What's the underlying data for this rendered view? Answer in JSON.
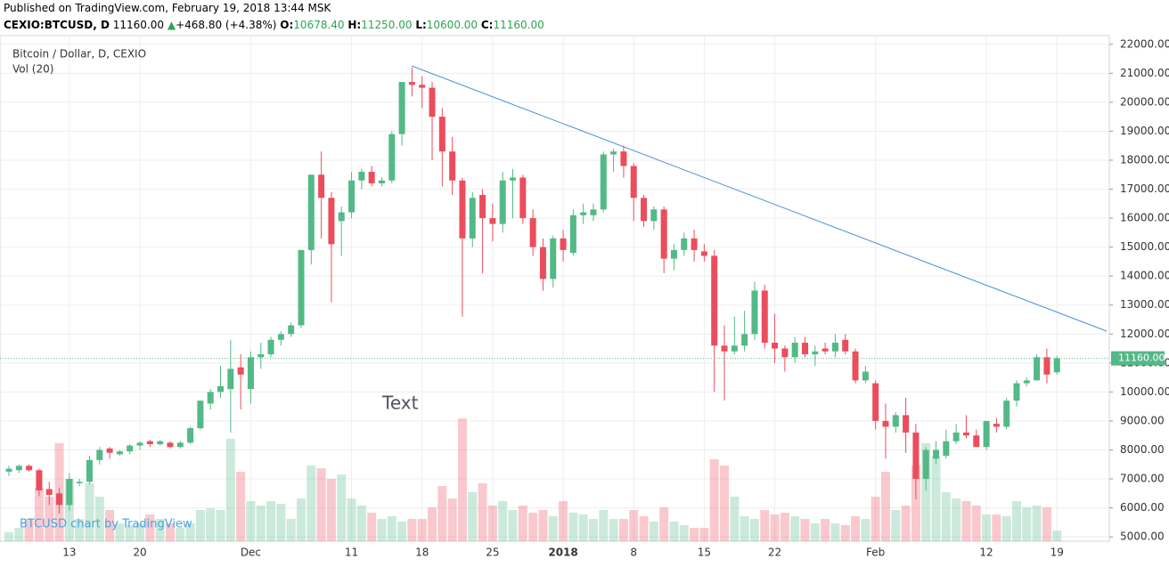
{
  "header": {
    "published": "Published on TradingView.com, February 19, 2018 13:44 MSK",
    "symbol": "CEXIO:BTCUSD, D",
    "price": "11160.00",
    "arrow": "▲",
    "change": "+468.80 (+4.38%)",
    "ohlc": [
      {
        "key": "O:",
        "value": "10678.40"
      },
      {
        "key": "H:",
        "value": "11250.00"
      },
      {
        "key": "L:",
        "value": "10600.00"
      },
      {
        "key": "C:",
        "value": "11160.00"
      }
    ]
  },
  "chart_data": {
    "type": "candlestick",
    "title": "Bitcoin / Dollar, D, CEXIO",
    "volume_label": "Vol (20)",
    "annotation": "Text",
    "watermark": "BTCUSD chart by TradingView",
    "categories": [
      null,
      null,
      null,
      null,
      null,
      null,
      "13",
      null,
      null,
      null,
      null,
      null,
      null,
      "20",
      null,
      null,
      null,
      null,
      null,
      null,
      null,
      null,
      null,
      null,
      "Dec",
      null,
      null,
      null,
      null,
      null,
      null,
      null,
      null,
      null,
      "11",
      null,
      null,
      null,
      null,
      null,
      null,
      "18",
      null,
      null,
      null,
      null,
      null,
      null,
      "25",
      null,
      null,
      null,
      null,
      null,
      null,
      "2018",
      null,
      null,
      null,
      null,
      null,
      null,
      "8",
      null,
      null,
      null,
      null,
      null,
      null,
      "15",
      null,
      null,
      null,
      null,
      null,
      null,
      "22",
      null,
      null,
      null,
      null,
      null,
      null,
      null,
      null,
      null,
      "Feb",
      null,
      null,
      null,
      null,
      null,
      null,
      null,
      null,
      null,
      null,
      "12",
      null,
      null,
      null,
      null,
      null,
      null,
      "19"
    ],
    "open": [
      7250,
      7300,
      7450,
      7300,
      6650,
      6500,
      6100,
      6850,
      6900,
      7650,
      8050,
      7850,
      7950,
      8150,
      8300,
      8200,
      8250,
      8100,
      8250,
      8750,
      9600,
      10000,
      10100,
      10850,
      10100,
      11200,
      11300,
      11800,
      12000,
      12300,
      14900,
      17500,
      16700,
      15900,
      16200,
      17300,
      17600,
      17200,
      17300,
      18900,
      20700,
      20600,
      20500,
      19500,
      18300,
      17300,
      15300,
      16800,
      16000,
      15800,
      17300,
      17400,
      16000,
      15000,
      13900,
      15300,
      14800,
      16100,
      16100,
      16300,
      18200,
      18300,
      17800,
      16700,
      15900,
      16300,
      14600,
      14900,
      15300,
      14850,
      14700,
      11600,
      11400,
      11600,
      12000,
      13500,
      11700,
      11500,
      11200,
      11700,
      11300,
      11500,
      11400,
      11800,
      11400,
      10400,
      10300,
      9000,
      8800,
      9200,
      8600,
      7000,
      7700,
      7800,
      8300,
      8600,
      8500,
      8100,
      8900,
      8800,
      9700,
      10300,
      10400,
      11200,
      10678.4
    ],
    "high": [
      7450,
      7500,
      7500,
      7350,
      6900,
      6700,
      7200,
      7000,
      7800,
      8100,
      8100,
      8000,
      8200,
      8300,
      8350,
      8350,
      8300,
      8300,
      8800,
      9700,
      10100,
      10900,
      11800,
      11300,
      11400,
      11700,
      11900,
      12100,
      12400,
      14900,
      17500,
      18300,
      16900,
      16400,
      17600,
      17700,
      17800,
      17400,
      19000,
      20700,
      21200,
      20900,
      20700,
      19800,
      18800,
      17400,
      16900,
      17000,
      16500,
      17600,
      17700,
      17500,
      16300,
      15300,
      15400,
      15600,
      16300,
      16500,
      16500,
      18300,
      18400,
      18500,
      17900,
      16800,
      16400,
      16400,
      15100,
      15500,
      15600,
      15100,
      14900,
      12300,
      12600,
      12800,
      13800,
      13700,
      12700,
      11600,
      11900,
      11900,
      11600,
      11700,
      12000,
      12000,
      11500,
      10900,
      10400,
      9600,
      9300,
      9800,
      8900,
      8100,
      8300,
      8700,
      8900,
      9200,
      8700,
      9000,
      9100,
      9800,
      10400,
      10500,
      11300,
      11500,
      11250
    ],
    "low": [
      7100,
      7200,
      7250,
      6400,
      6100,
      5800,
      5900,
      6750,
      6800,
      7500,
      7700,
      7800,
      7850,
      8000,
      8100,
      8150,
      8050,
      8050,
      8200,
      8700,
      9400,
      9800,
      8600,
      9400,
      9600,
      10800,
      11200,
      11600,
      11900,
      12200,
      14400,
      15300,
      13100,
      14700,
      16000,
      17000,
      17100,
      17100,
      17200,
      18500,
      20200,
      19800,
      18000,
      17100,
      16800,
      12600,
      15000,
      14100,
      15200,
      15500,
      16000,
      15800,
      14700,
      13500,
      13600,
      14500,
      14700,
      15800,
      15900,
      16200,
      17600,
      17400,
      15900,
      15700,
      15600,
      14100,
      14200,
      14700,
      14500,
      14500,
      10000,
      9700,
      11300,
      11400,
      11800,
      11500,
      11000,
      10700,
      11000,
      11200,
      10900,
      11300,
      11200,
      11300,
      10300,
      10300,
      8700,
      7700,
      8600,
      7900,
      6300,
      6600,
      7500,
      7700,
      8200,
      8400,
      8100,
      8000,
      8600,
      8700,
      9500,
      10200,
      10400,
      10300,
      10600
    ],
    "close": [
      7350,
      7450,
      7300,
      6600,
      6450,
      6100,
      7000,
      6900,
      7650,
      8000,
      7900,
      7950,
      8150,
      8250,
      8200,
      8300,
      8100,
      8250,
      8750,
      9700,
      10000,
      10200,
      10800,
      10600,
      11200,
      11300,
      11800,
      12000,
      12300,
      14900,
      17500,
      16700,
      15100,
      16200,
      17300,
      17600,
      17200,
      17300,
      18900,
      20700,
      20600,
      20500,
      19500,
      18300,
      17300,
      15300,
      16700,
      16000,
      15800,
      17300,
      17400,
      16000,
      15000,
      13900,
      15300,
      14900,
      16100,
      16200,
      16300,
      18200,
      18300,
      17800,
      16700,
      15900,
      16300,
      14600,
      14900,
      15300,
      14900,
      14700,
      11600,
      11400,
      11600,
      12000,
      13500,
      11700,
      11500,
      11200,
      11700,
      11300,
      11400,
      11400,
      11700,
      11400,
      10400,
      10700,
      9000,
      8800,
      9200,
      8600,
      7000,
      8000,
      8000,
      8300,
      8600,
      8500,
      8100,
      9000,
      8800,
      9700,
      10300,
      10400,
      11200,
      10600,
      11160
    ],
    "volume": [
      10,
      15,
      25,
      60,
      50,
      110,
      70,
      25,
      65,
      50,
      35,
      20,
      18,
      20,
      30,
      25,
      20,
      15,
      20,
      35,
      37,
      35,
      115,
      78,
      45,
      40,
      45,
      42,
      25,
      48,
      85,
      82,
      70,
      75,
      48,
      40,
      32,
      25,
      28,
      22,
      25,
      25,
      38,
      62,
      48,
      138,
      55,
      65,
      40,
      45,
      35,
      40,
      32,
      35,
      28,
      45,
      32,
      30,
      25,
      35,
      25,
      25,
      35,
      28,
      22,
      38,
      22,
      18,
      15,
      15,
      92,
      85,
      50,
      28,
      25,
      35,
      30,
      32,
      28,
      25,
      20,
      25,
      20,
      18,
      28,
      25,
      50,
      78,
      35,
      40,
      85,
      110,
      95,
      55,
      48,
      45,
      40,
      30,
      30,
      28,
      45,
      38,
      40,
      38,
      12
    ],
    "up_color": "#53b987",
    "down_color": "#eb4d5c",
    "last_price": {
      "value": 11160,
      "label": "11160.00"
    },
    "ylim": [
      4850,
      22300
    ],
    "yticks": [
      {
        "value": 5000,
        "label": "5000.00"
      },
      {
        "value": 6000,
        "label": "6000.00"
      },
      {
        "value": 7000,
        "label": "7000.00"
      },
      {
        "value": 8000,
        "label": "8000.00"
      },
      {
        "value": 9000,
        "label": "9000.00"
      },
      {
        "value": 10000,
        "label": "10000.00"
      },
      {
        "value": 11000,
        "label": "11000.00"
      },
      {
        "value": 12000,
        "label": "12000.00"
      },
      {
        "value": 13000,
        "label": "13000.00"
      },
      {
        "value": 14000,
        "label": "14000.00"
      },
      {
        "value": 15000,
        "label": "15000.00"
      },
      {
        "value": 16000,
        "label": "16000.00"
      },
      {
        "value": 17000,
        "label": "17000.00"
      },
      {
        "value": 18000,
        "label": "18000.00"
      },
      {
        "value": 19000,
        "label": "19000.00"
      },
      {
        "value": 20000,
        "label": "20000.00"
      },
      {
        "value": 21000,
        "label": "21000.00"
      },
      {
        "value": 22000,
        "label": "22000.00"
      }
    ],
    "grid": true
  }
}
